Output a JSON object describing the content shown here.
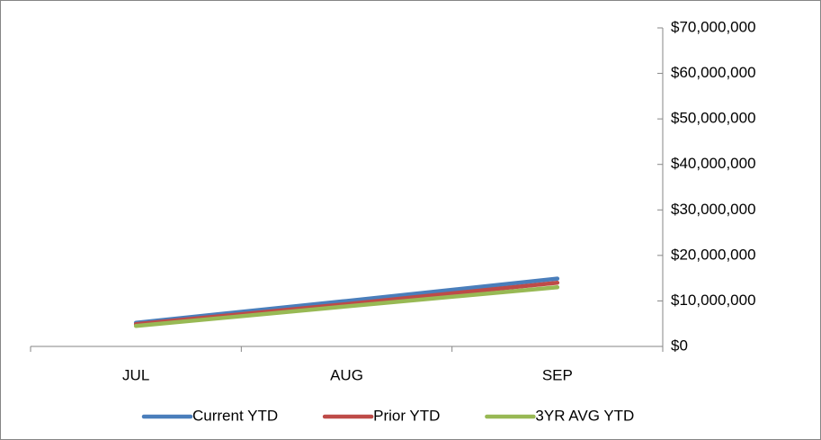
{
  "chart_data": {
    "type": "line",
    "categories": [
      "JUL",
      "AUG",
      "SEP"
    ],
    "series": [
      {
        "name": "Current YTD",
        "color": "#4a7ebb",
        "values": [
          5200000,
          10000000,
          14900000
        ]
      },
      {
        "name": "Prior YTD",
        "color": "#be4b48",
        "values": [
          4900000,
          9300000,
          14000000
        ]
      },
      {
        "name": "3YR AVG YTD",
        "color": "#98b954",
        "values": [
          4500000,
          8800000,
          13000000
        ]
      }
    ],
    "ylim": [
      0,
      70000000
    ],
    "yticks": [
      {
        "value": 0,
        "label": "$0"
      },
      {
        "value": 10000000,
        "label": "$10,000,000"
      },
      {
        "value": 20000000,
        "label": "$20,000,000"
      },
      {
        "value": 30000000,
        "label": "$30,000,000"
      },
      {
        "value": 40000000,
        "label": "$40,000,000"
      },
      {
        "value": 50000000,
        "label": "$50,000,000"
      },
      {
        "value": 60000000,
        "label": "$60,000,000"
      },
      {
        "value": 70000000,
        "label": "$70,000,000"
      }
    ],
    "y_axis_side": "right",
    "legend": "bottom"
  }
}
